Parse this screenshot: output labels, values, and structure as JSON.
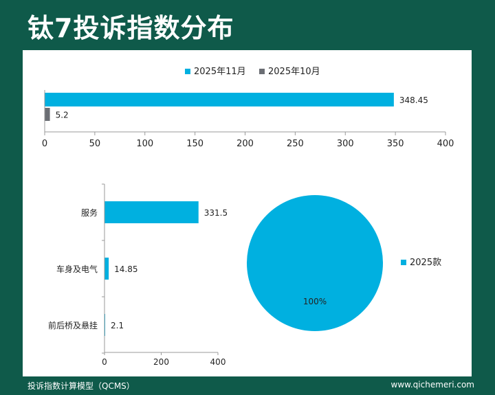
{
  "page": {
    "title": "钛7投诉指数分布",
    "footer_left": "投诉指数计算模型（QCMS）",
    "footer_right": "www.qichemeri.com"
  },
  "colors": {
    "background": "#0f5a4a",
    "series_1": "#00b0e0",
    "series_2": "#6b6e74"
  },
  "chart_data": [
    {
      "type": "bar",
      "orientation": "horizontal",
      "series": [
        {
          "name": "2025年11月",
          "values": [
            348.45
          ]
        },
        {
          "name": "2025年10月",
          "values": [
            5.2
          ]
        }
      ],
      "xlim": [
        0,
        400
      ],
      "xticks": [
        0,
        50,
        100,
        150,
        200,
        250,
        300,
        350,
        400
      ],
      "legend": "top",
      "grid": false
    },
    {
      "type": "bar",
      "orientation": "horizontal",
      "categories": [
        "服务",
        "车身及电气",
        "前后桥及悬挂"
      ],
      "values": [
        331.5,
        14.85,
        2.1
      ],
      "xlim": [
        0,
        400
      ],
      "xticks": [
        0,
        200,
        400
      ],
      "grid": false
    },
    {
      "type": "pie",
      "categories": [
        "2025款"
      ],
      "values": [
        100
      ],
      "labels": [
        "100%"
      ],
      "legend": "right"
    }
  ]
}
